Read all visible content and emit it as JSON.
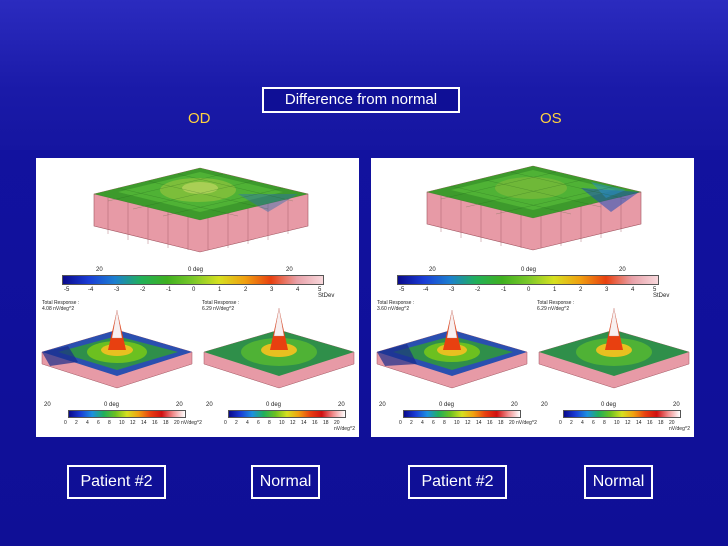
{
  "slide": {
    "title": "Difference from normal",
    "left_eye_label": "OD",
    "right_eye_label": "OS"
  },
  "panels": [
    {
      "top_scale_ticks": [
        "-5",
        "-4",
        "-3",
        "-2",
        "-1",
        "0",
        "1",
        "2",
        "3",
        "4",
        "5 StDev"
      ],
      "top_axis": [
        "20",
        "0 deg",
        "20"
      ],
      "patient_response_label": "Total Response :",
      "patient_response_value": "4.08 nV/deg^2",
      "normal_response_label": "Total Response :",
      "normal_response_value": "6.29 nV/deg^2",
      "bottom_axis": [
        "20",
        "0 deg",
        "20"
      ],
      "bottom_scale_ticks": [
        "0",
        "2",
        "4",
        "6",
        "8",
        "10",
        "12",
        "14",
        "16",
        "18",
        "20 nV/deg^2"
      ]
    },
    {
      "top_scale_ticks": [
        "-5",
        "-4",
        "-3",
        "-2",
        "-1",
        "0",
        "1",
        "2",
        "3",
        "4",
        "5 StDev"
      ],
      "top_axis": [
        "20",
        "0 deg",
        "20"
      ],
      "patient_response_label": "Total Response :",
      "patient_response_value": "3.60 nV/deg^2",
      "normal_response_label": "Total Response :",
      "normal_response_value": "6.29 nV/deg^2",
      "bottom_axis": [
        "20",
        "0 deg",
        "20"
      ],
      "bottom_scale_ticks": [
        "0",
        "2",
        "4",
        "6",
        "8",
        "10",
        "12",
        "14",
        "16",
        "18",
        "20 nV/deg^2"
      ]
    }
  ],
  "captions": [
    "Patient #2",
    "Normal",
    "Patient #2",
    "Normal"
  ],
  "colors": {
    "caption_border": "#ffffff",
    "eye_label": "#ffd23f",
    "diff_scale": [
      "#0a0a8c",
      "#1a3dd6",
      "#1c7fd0",
      "#21b05a",
      "#3fb020",
      "#7ac82a",
      "#d6e020",
      "#f0a010",
      "#e84010",
      "#e8a0a8",
      "#f8d8dc"
    ],
    "resp_scale": [
      "#0a0a8c",
      "#1a3dd6",
      "#1c8fe0",
      "#21b05a",
      "#6cc020",
      "#d6e020",
      "#f0a010",
      "#e84010",
      "#d01010",
      "#f09090",
      "#ffffff"
    ]
  }
}
